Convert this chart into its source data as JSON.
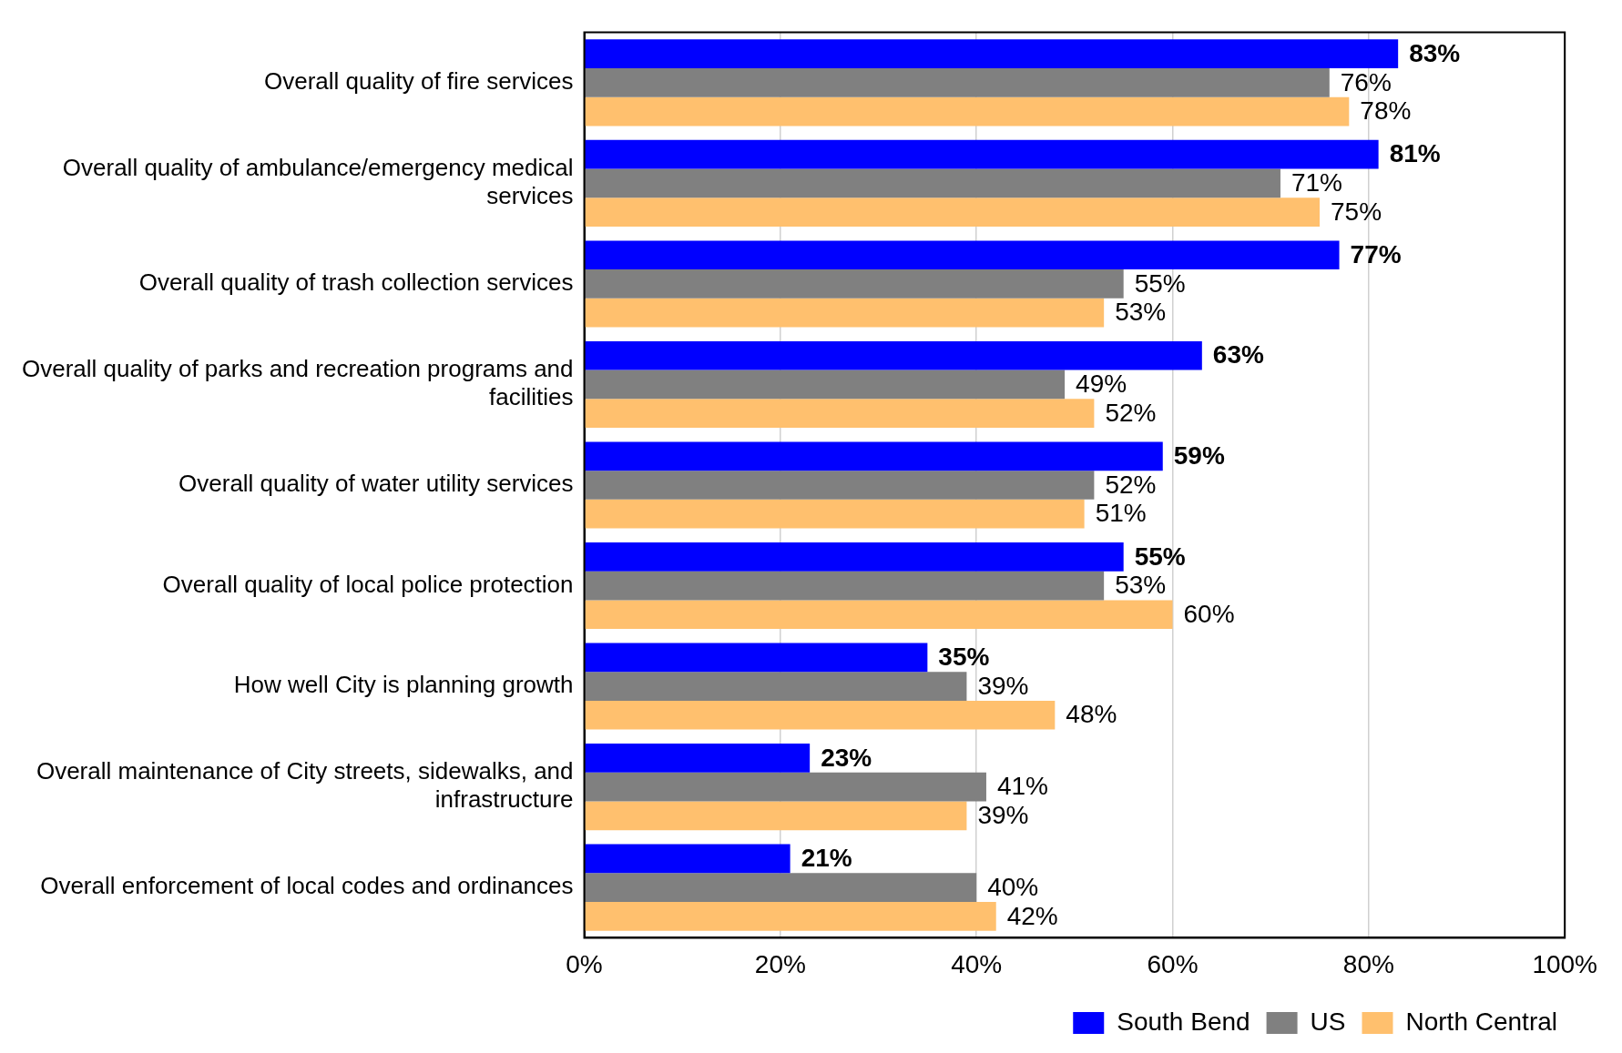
{
  "chart_data": {
    "type": "bar",
    "orientation": "horizontal",
    "categories": [
      "Overall quality of fire services",
      "Overall quality of ambulance/emergency medical services",
      "Overall quality of trash collection services",
      "Overall quality of parks and recreation programs and facilities",
      "Overall quality of water utility services",
      "Overall quality of local police protection",
      "How well City is planning growth",
      "Overall maintenance of City streets, sidewalks, and infrastructure",
      "Overall enforcement of local codes and ordinances"
    ],
    "series": [
      {
        "name": "South Bend",
        "color": "#0000ff",
        "values": [
          83,
          81,
          77,
          63,
          59,
          55,
          35,
          23,
          21
        ],
        "value_labels": [
          "83%",
          "81%",
          "77%",
          "63%",
          "59%",
          "55%",
          "35%",
          "23%",
          "21%"
        ]
      },
      {
        "name": "US",
        "color": "#808080",
        "values": [
          76,
          71,
          55,
          49,
          52,
          53,
          39,
          41,
          40
        ],
        "value_labels": [
          "76%",
          "71%",
          "55%",
          "49%",
          "52%",
          "53%",
          "39%",
          "41%",
          "40%"
        ]
      },
      {
        "name": "North Central",
        "color": "#ffc06e",
        "values": [
          78,
          75,
          53,
          52,
          51,
          60,
          48,
          39,
          42
        ],
        "value_labels": [
          "78%",
          "75%",
          "53%",
          "52%",
          "51%",
          "60%",
          "48%",
          "39%",
          "42%"
        ]
      }
    ],
    "xlim": [
      0,
      100
    ],
    "xticks": [
      {
        "value": 0,
        "label": "0%"
      },
      {
        "value": 20,
        "label": "20%"
      },
      {
        "value": 40,
        "label": "40%"
      },
      {
        "value": 60,
        "label": "60%"
      },
      {
        "value": 80,
        "label": "80%"
      },
      {
        "value": 100,
        "label": "100%"
      }
    ],
    "grid": "x",
    "legend": "bottom"
  }
}
